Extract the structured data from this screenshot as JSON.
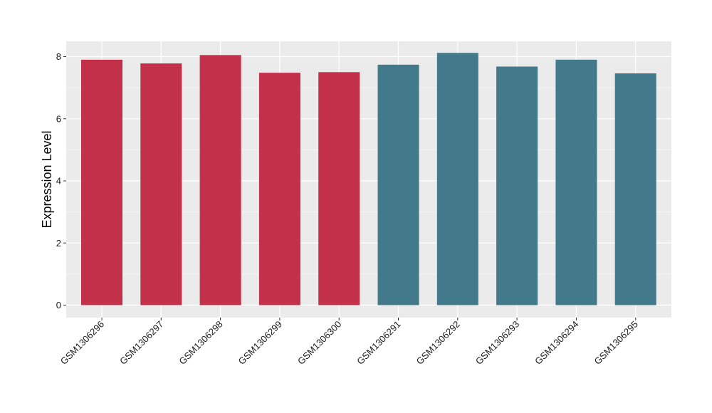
{
  "chart_data": {
    "type": "bar",
    "title": "",
    "xlabel": "",
    "ylabel": "Expression Level",
    "ylim": [
      0,
      8.4
    ],
    "yticks": [
      0,
      2,
      4,
      6,
      8
    ],
    "grid": true,
    "legend": "none",
    "categories": [
      "GSM1306296",
      "GSM1306297",
      "GSM1306298",
      "GSM1306299",
      "GSM1306300",
      "GSM1306291",
      "GSM1306292",
      "GSM1306293",
      "GSM1306294",
      "GSM1306295"
    ],
    "values": [
      7.9,
      7.78,
      8.05,
      7.48,
      7.5,
      7.74,
      8.12,
      7.68,
      7.9,
      7.46
    ],
    "colors": [
      "#C3304A",
      "#C3304A",
      "#C3304A",
      "#C3304A",
      "#C3304A",
      "#437A8B",
      "#437A8B",
      "#437A8B",
      "#437A8B",
      "#437A8B"
    ],
    "panel_background": "#EBEBEB",
    "gridline_color": "#FFFFFF"
  }
}
